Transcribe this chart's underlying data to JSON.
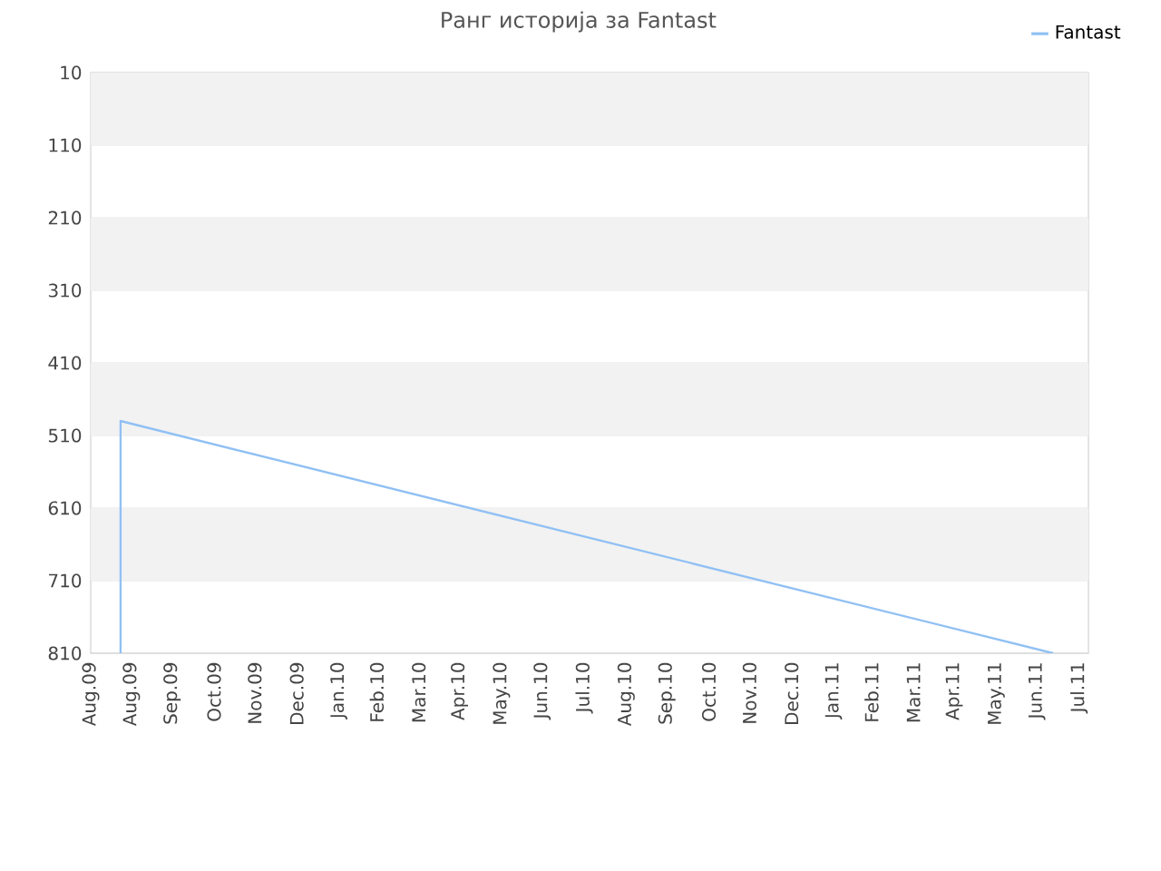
{
  "chart_data": {
    "type": "line",
    "title": "Ранг историја за Fantast",
    "x": [
      "2009-08-23",
      "2009-08-23",
      "2011-07-12"
    ],
    "series": [
      {
        "name": "Fantast",
        "color": "#90c0f4",
        "values": [
          810,
          490,
          810
        ]
      }
    ],
    "xlim": [
      "2009-08-01",
      "2011-08-07"
    ],
    "xticks": [
      {
        "value": "2009-08-01",
        "label": "Aug.09"
      },
      {
        "value": "2009-08-31",
        "label": "Aug.09"
      },
      {
        "value": "2009-09-30",
        "label": "Sep.09"
      },
      {
        "value": "2009-10-31",
        "label": "Oct.09"
      },
      {
        "value": "2009-11-30",
        "label": "Nov.09"
      },
      {
        "value": "2009-12-31",
        "label": "Dec.09"
      },
      {
        "value": "2010-01-31",
        "label": "Jan.10"
      },
      {
        "value": "2010-02-28",
        "label": "Feb.10"
      },
      {
        "value": "2010-03-31",
        "label": "Mar.10"
      },
      {
        "value": "2010-04-30",
        "label": "Apr.10"
      },
      {
        "value": "2010-05-31",
        "label": "May.10"
      },
      {
        "value": "2010-06-30",
        "label": "Jun.10"
      },
      {
        "value": "2010-07-31",
        "label": "Jul.10"
      },
      {
        "value": "2010-08-31",
        "label": "Aug.10"
      },
      {
        "value": "2010-09-30",
        "label": "Sep.10"
      },
      {
        "value": "2010-10-31",
        "label": "Oct.10"
      },
      {
        "value": "2010-11-30",
        "label": "Nov.10"
      },
      {
        "value": "2010-12-31",
        "label": "Dec.10"
      },
      {
        "value": "2011-01-31",
        "label": "Jan.11"
      },
      {
        "value": "2011-02-28",
        "label": "Feb.11"
      },
      {
        "value": "2011-03-31",
        "label": "Mar.11"
      },
      {
        "value": "2011-04-30",
        "label": "Apr.11"
      },
      {
        "value": "2011-05-31",
        "label": "May.11"
      },
      {
        "value": "2011-06-30",
        "label": "Jun.11"
      },
      {
        "value": "2011-07-31",
        "label": "Jul.11"
      }
    ],
    "ylim": [
      810,
      10
    ],
    "yticks": [
      10,
      110,
      210,
      310,
      410,
      510,
      610,
      710,
      810
    ],
    "bands": [
      {
        "axis": "y",
        "from": 10,
        "to": 110,
        "color": "#f2f2f2"
      },
      {
        "axis": "y",
        "from": 210,
        "to": 310,
        "color": "#f2f2f2"
      },
      {
        "axis": "y",
        "from": 410,
        "to": 510,
        "color": "#f2f2f2"
      },
      {
        "axis": "y",
        "from": 610,
        "to": 710,
        "color": "#f2f2f2"
      }
    ],
    "grid": "y",
    "legend": "top right",
    "marker": "none",
    "line_style": "solid"
  }
}
